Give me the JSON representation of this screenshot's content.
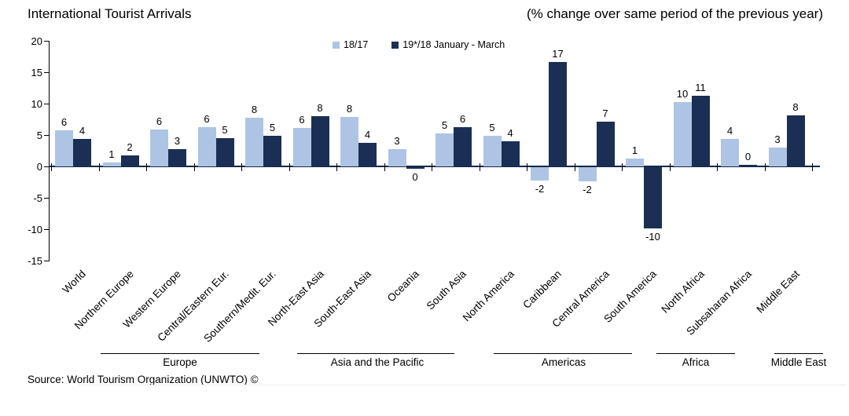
{
  "header": {
    "title": "International Tourist Arrivals",
    "subtitle": "(% change over same period of the previous year)"
  },
  "source": "Source: World Tourism Organization (UNWTO) ©",
  "chart_data": {
    "type": "bar",
    "title": "International Tourist Arrivals",
    "subtitle": "(% change over same period of the previous year)",
    "unit": "% change vs same period of previous year",
    "categories": [
      "World",
      "Northern Europe",
      "Western Europe",
      "Central/Eastern Eur.",
      "Southern/Medit. Eur.",
      "North-East Asia",
      "South-East Asia",
      "Oceania",
      "South Asia",
      "North America",
      "Caribbean",
      "Central America",
      "South America",
      "North Africa",
      "Subsaharan Africa",
      "Middle East"
    ],
    "series": [
      {
        "name": "18/17",
        "color": "#AEC4E4",
        "values": [
          6,
          1,
          6,
          6,
          8,
          6,
          8,
          3,
          5,
          5,
          -2,
          -2,
          1,
          10,
          4,
          3
        ],
        "precise": [
          5.7,
          0.6,
          5.9,
          6.3,
          7.8,
          6.1,
          7.9,
          2.8,
          5.2,
          4.9,
          -2.1,
          -2.3,
          1.2,
          10.2,
          4.4,
          3.0
        ]
      },
      {
        "name": "19*/18 January - March",
        "color": "#1B2F54",
        "values": [
          4,
          2,
          3,
          5,
          5,
          8,
          4,
          0,
          6,
          4,
          17,
          7,
          -10,
          11,
          0,
          8
        ],
        "precise": [
          4.4,
          1.7,
          2.8,
          4.5,
          4.9,
          8.0,
          3.7,
          -0.3,
          6.2,
          4.0,
          16.6,
          7.1,
          -9.8,
          11.3,
          0.25,
          8.1
        ]
      }
    ],
    "regions": [
      {
        "label": "Europe",
        "from": 1,
        "to": 4
      },
      {
        "label": "Asia and the Pacific",
        "from": 5,
        "to": 8
      },
      {
        "label": "Americas",
        "from": 9,
        "to": 12
      },
      {
        "label": "Africa",
        "from": 13,
        "to": 14
      },
      {
        "label": "Middle East",
        "from": 15,
        "to": 15
      }
    ],
    "y_axis": {
      "min": -15,
      "max": 20,
      "step": 5,
      "ticks": [
        20,
        15,
        10,
        5,
        0,
        -5,
        -10,
        -15
      ]
    },
    "legend_position": "top-center",
    "grid": false
  }
}
